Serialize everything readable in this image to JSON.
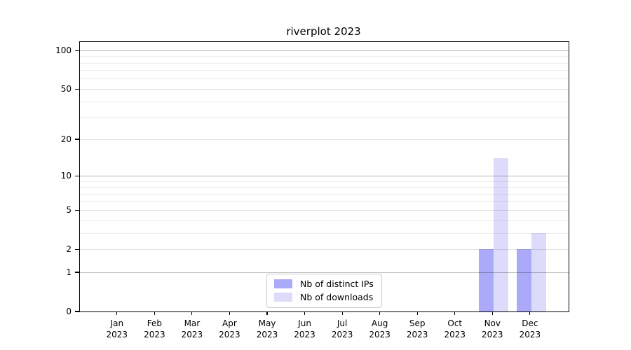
{
  "window": {
    "background_color": "#ffffff"
  },
  "chart_data": {
    "type": "bar",
    "title": "riverplot 2023",
    "categories": [
      "Jan",
      "Feb",
      "Mar",
      "Apr",
      "May",
      "Jun",
      "Jul",
      "Aug",
      "Sep",
      "Oct",
      "Nov",
      "Dec"
    ],
    "category_year": "2023",
    "series": [
      {
        "name": "Nb of distinct IPs",
        "color": "#aaaaf9",
        "values": [
          0,
          0,
          0,
          0,
          0,
          0,
          0,
          0,
          0,
          0,
          2,
          2
        ]
      },
      {
        "name": "Nb of downloads",
        "color": "#dcdcfa",
        "values": [
          0,
          0,
          0,
          0,
          0,
          0,
          0,
          0,
          0,
          0,
          14,
          3
        ]
      }
    ],
    "xlabel": "",
    "ylabel": "",
    "y_axis": {
      "scale": "log1p",
      "tick_values": [
        0,
        1,
        2,
        5,
        10,
        20,
        50,
        100
      ],
      "tick_labels": [
        "0",
        "1",
        "2",
        "5",
        "10",
        "20",
        "50",
        "100"
      ],
      "ylim": [
        0,
        117
      ]
    },
    "grid": {
      "visible": true,
      "major_values": [
        1,
        10,
        100
      ],
      "mid_values": [
        2,
        5,
        20,
        50
      ],
      "minor_values": [
        3,
        4,
        6,
        7,
        8,
        9,
        30,
        40,
        60,
        70,
        80,
        90
      ],
      "major_color": "rgba(0,0,0,0.27)",
      "mid_color": "rgba(0,0,0,0.12)",
      "minor_color": "rgba(0,0,0,0.07)"
    },
    "legend": {
      "position": "lower center",
      "entries": [
        "Nb of distinct IPs",
        "Nb of downloads"
      ]
    }
  }
}
